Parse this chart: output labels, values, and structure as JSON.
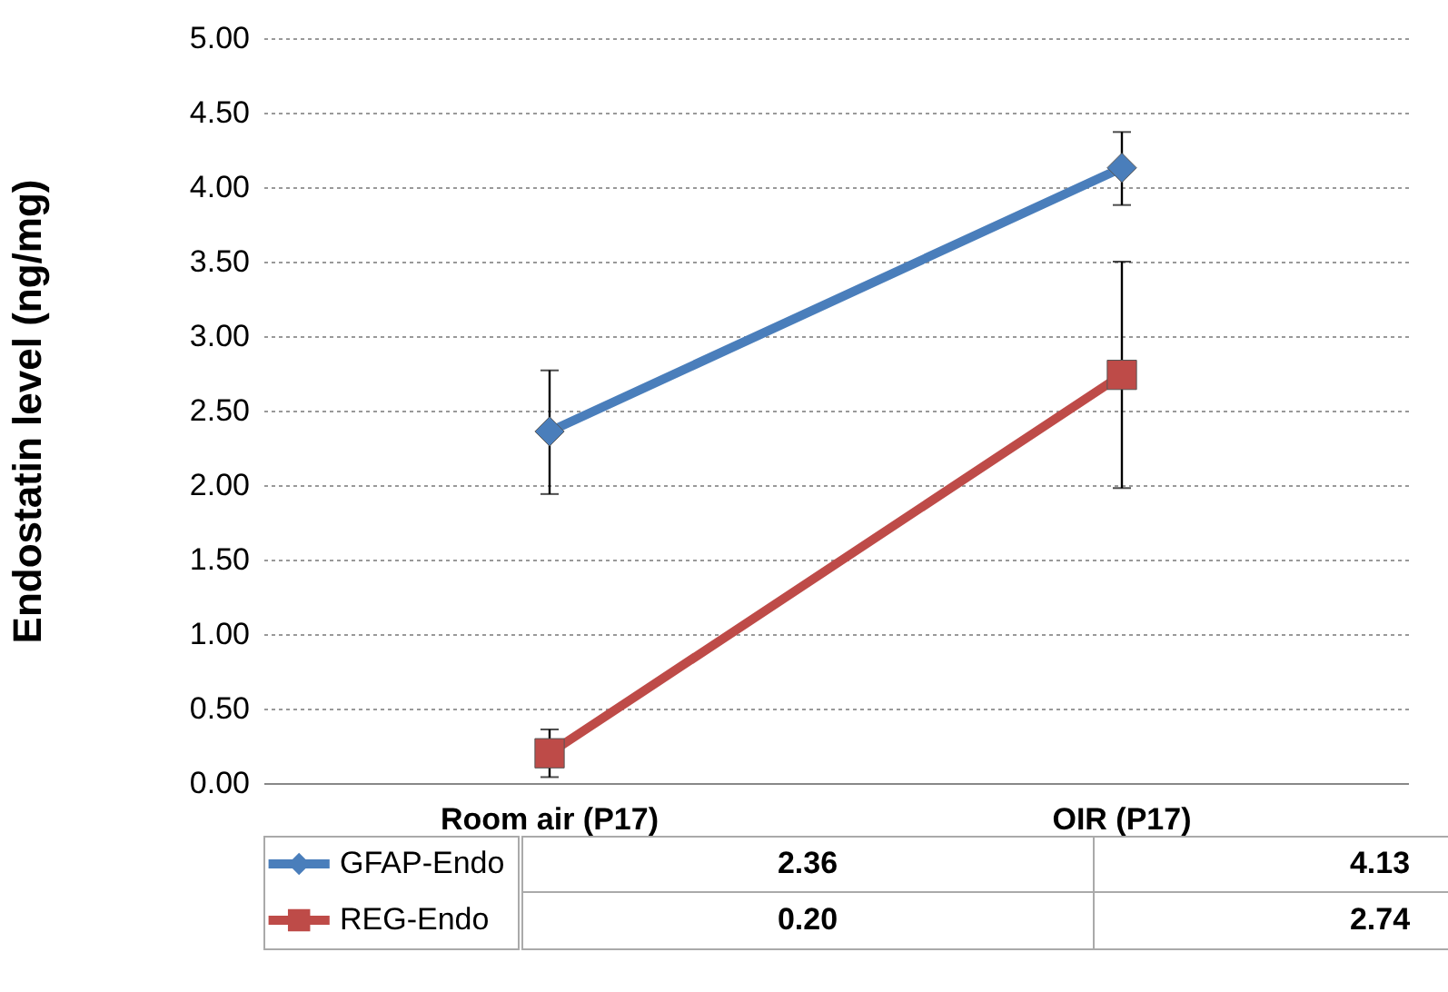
{
  "chart_data": {
    "type": "line",
    "ylabel": "Endostatin level (ng/mg)",
    "categories": [
      "Room air (P17)",
      "OIR (P17)"
    ],
    "series": [
      {
        "name": "GFAP-Endo",
        "color": "#4a7ebb",
        "marker": "diamond",
        "values": [
          2.36,
          4.13
        ],
        "value_labels": [
          "2.36",
          "4.13"
        ],
        "errors": [
          [
            1.94,
            2.77
          ],
          [
            3.88,
            4.37
          ]
        ]
      },
      {
        "name": "REG-Endo",
        "color": "#be4b48",
        "marker": "square",
        "values": [
          0.2,
          2.74
        ],
        "value_labels": [
          "0.20",
          "2.74"
        ],
        "errors": [
          [
            0.04,
            0.36
          ],
          [
            1.98,
            3.5
          ]
        ]
      }
    ],
    "ylim": [
      0,
      5
    ],
    "yticks": [
      {
        "value": 0,
        "label": "0.00"
      },
      {
        "value": 0.5,
        "label": "0.50"
      },
      {
        "value": 1,
        "label": "1.00"
      },
      {
        "value": 1.5,
        "label": "1.50"
      },
      {
        "value": 2,
        "label": "2.00"
      },
      {
        "value": 2.5,
        "label": "2.50"
      },
      {
        "value": 3,
        "label": "3.00"
      },
      {
        "value": 3.5,
        "label": "3.50"
      },
      {
        "value": 4,
        "label": "4.00"
      },
      {
        "value": 4.5,
        "label": "4.50"
      },
      {
        "value": 5,
        "label": "5.00"
      }
    ],
    "grid": "y",
    "legend": "bottom left"
  }
}
